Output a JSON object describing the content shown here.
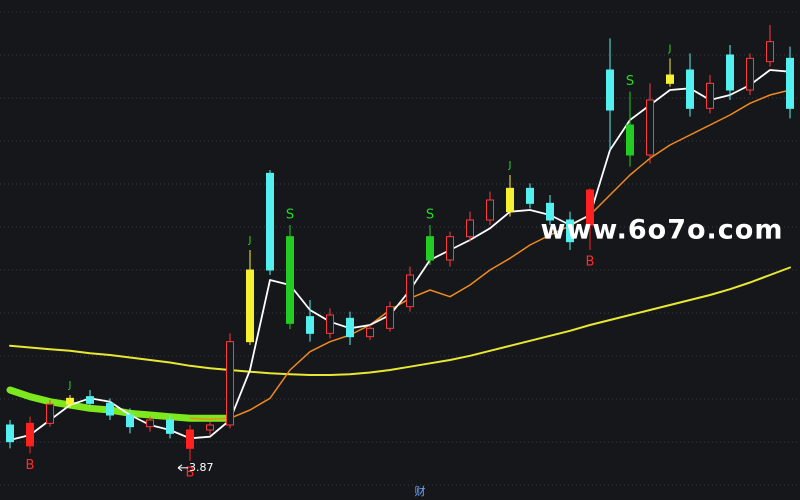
{
  "chart_data": {
    "type": "candlestick",
    "ylim": [
      3.4,
      9.4
    ],
    "grid": true,
    "open": [
      4.3,
      4.05,
      4.32,
      4.55,
      4.64,
      4.56,
      4.42,
      4.28,
      4.36,
      4.02,
      4.24,
      4.3,
      5.3,
      7.32,
      6.56,
      5.6,
      5.4,
      5.58,
      5.36,
      5.46,
      5.72,
      6.56,
      6.28,
      6.56,
      6.76,
      6.86,
      7.14,
      6.96,
      6.76,
      6.7,
      8.56,
      7.9,
      7.54,
      8.4,
      8.56,
      8.1,
      8.74,
      8.32,
      8.66,
      8.7
    ],
    "high": [
      4.36,
      4.4,
      4.6,
      4.66,
      4.72,
      4.62,
      4.5,
      4.4,
      4.42,
      4.3,
      4.34,
      5.4,
      6.4,
      7.36,
      6.7,
      5.8,
      5.7,
      5.66,
      5.5,
      5.78,
      6.2,
      6.7,
      6.62,
      6.86,
      7.1,
      7.3,
      7.2,
      7.06,
      6.86,
      7.14,
      8.94,
      8.3,
      8.4,
      8.7,
      8.76,
      8.5,
      8.86,
      8.76,
      9.1,
      8.84
    ],
    "low": [
      4.02,
      3.96,
      4.28,
      4.5,
      4.52,
      4.36,
      4.2,
      4.22,
      4.14,
      3.87,
      4.18,
      4.26,
      5.26,
      6.1,
      5.45,
      5.3,
      5.34,
      5.26,
      5.32,
      5.42,
      5.66,
      6.22,
      6.2,
      6.5,
      6.7,
      6.8,
      6.9,
      6.7,
      6.4,
      6.4,
      7.6,
      7.4,
      7.44,
      8.36,
      8.0,
      8.04,
      8.2,
      8.26,
      8.6,
      7.98
    ],
    "close": [
      4.1,
      4.32,
      4.55,
      4.62,
      4.56,
      4.42,
      4.28,
      4.36,
      4.2,
      4.24,
      4.3,
      5.3,
      6.16,
      6.16,
      5.52,
      5.4,
      5.62,
      5.36,
      5.46,
      5.72,
      6.1,
      6.28,
      6.56,
      6.76,
      7.0,
      7.14,
      6.96,
      6.76,
      6.5,
      7.12,
      8.08,
      7.54,
      8.2,
      8.5,
      8.1,
      8.4,
      8.32,
      8.7,
      8.9,
      8.1
    ],
    "signals": [
      null,
      "B",
      null,
      "J",
      null,
      null,
      null,
      null,
      null,
      "B",
      null,
      null,
      "J",
      null,
      "S",
      null,
      null,
      null,
      null,
      null,
      null,
      "S",
      null,
      null,
      null,
      "J",
      null,
      null,
      null,
      "B",
      null,
      "S",
      null,
      "J",
      null,
      null,
      null,
      null,
      null,
      null
    ],
    "colors": {
      "up": "#ff3b3b",
      "down": "#54f0f0",
      "B": "#ff2020",
      "S": "#22cc22",
      "J": "#f5f032"
    },
    "signal_text_colors": {
      "B": "#ff2a2a",
      "S": "#22dd22",
      "J": "#22dd22"
    },
    "lines": [
      {
        "color": "#7ee81e",
        "width": 7,
        "values": [
          4.72,
          4.64,
          4.58,
          4.54,
          4.5,
          4.48,
          4.44,
          4.42,
          4.4,
          4.38,
          4.38,
          4.38,
          null,
          null,
          null,
          null,
          null,
          null,
          null,
          null,
          null,
          null,
          null,
          null,
          null,
          null,
          null,
          null,
          null,
          null,
          null,
          null,
          null,
          null,
          null,
          null,
          null,
          null,
          null,
          null
        ]
      },
      {
        "color": "#e8e832",
        "width": 2,
        "values": [
          5.25,
          5.23,
          5.21,
          5.19,
          5.16,
          5.14,
          5.11,
          5.08,
          5.05,
          5.01,
          4.98,
          4.96,
          4.94,
          4.92,
          4.91,
          4.9,
          4.9,
          4.91,
          4.93,
          4.96,
          5.0,
          5.04,
          5.08,
          5.13,
          5.19,
          5.25,
          5.31,
          5.37,
          5.43,
          5.5,
          5.56,
          5.62,
          5.68,
          5.74,
          5.8,
          5.86,
          5.93,
          6.01,
          6.1,
          6.19
        ]
      },
      {
        "color": "#f08a1e",
        "width": 1.5,
        "values": [
          null,
          null,
          null,
          null,
          null,
          null,
          null,
          null,
          null,
          4.38,
          4.37,
          4.38,
          4.48,
          4.62,
          4.96,
          5.18,
          5.3,
          5.38,
          5.5,
          5.68,
          5.82,
          5.92,
          5.84,
          5.98,
          6.16,
          6.3,
          6.46,
          6.58,
          6.69,
          6.82,
          7.06,
          7.3,
          7.5,
          7.66,
          7.78,
          7.9,
          8.02,
          8.16,
          8.26,
          8.32
        ]
      },
      {
        "color": "#ffffff",
        "width": 1.8,
        "values": [
          4.12,
          4.18,
          4.36,
          4.54,
          4.62,
          4.58,
          4.42,
          4.3,
          4.24,
          4.14,
          4.16,
          4.36,
          4.96,
          6.04,
          5.98,
          5.68,
          5.54,
          5.46,
          5.5,
          5.62,
          5.92,
          6.28,
          6.4,
          6.52,
          6.66,
          6.86,
          6.88,
          6.82,
          6.7,
          6.82,
          7.6,
          7.96,
          8.14,
          8.32,
          8.34,
          8.2,
          8.26,
          8.38,
          8.56,
          8.54
        ]
      }
    ],
    "low_marker": 3.87,
    "watermark": "www.6o7o.com",
    "footer_label": "财"
  }
}
